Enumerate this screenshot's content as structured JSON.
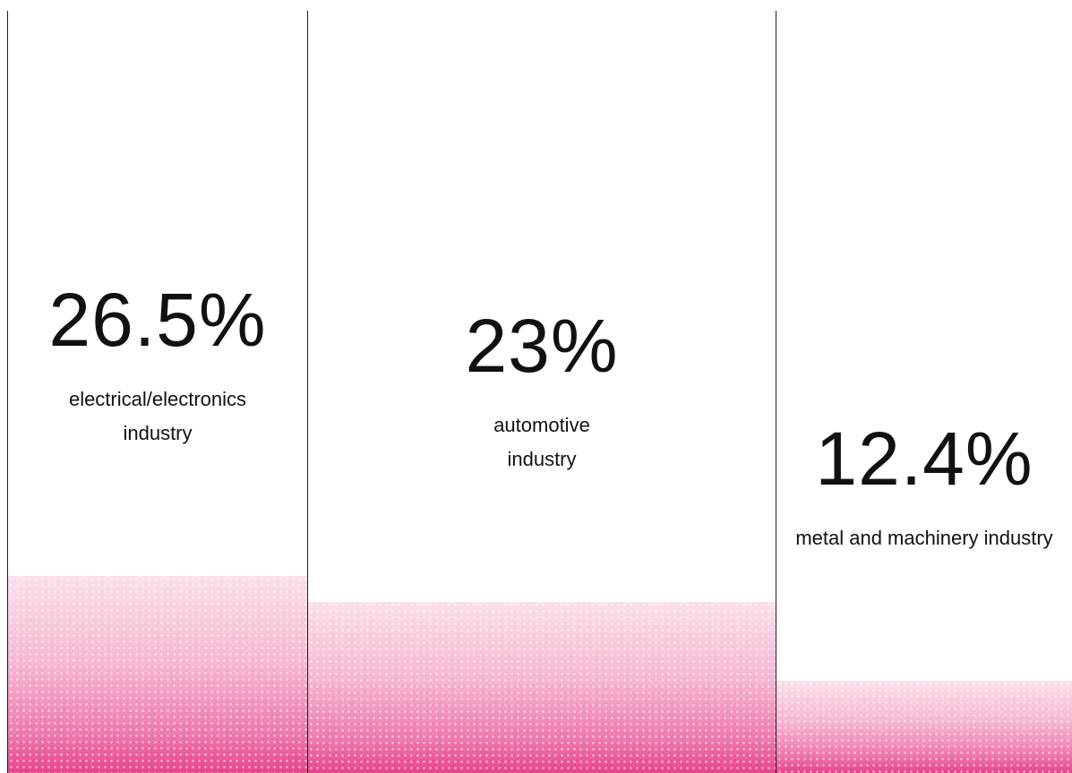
{
  "chart_data": {
    "type": "bar",
    "categories": [
      "electrical/electronics industry",
      "automotive industry",
      "metal and machinery industry"
    ],
    "values": [
      26.5,
      23,
      12.4
    ],
    "value_labels": [
      "26.5%",
      "23%",
      "12.4%"
    ],
    "color": "#e6448c"
  }
}
